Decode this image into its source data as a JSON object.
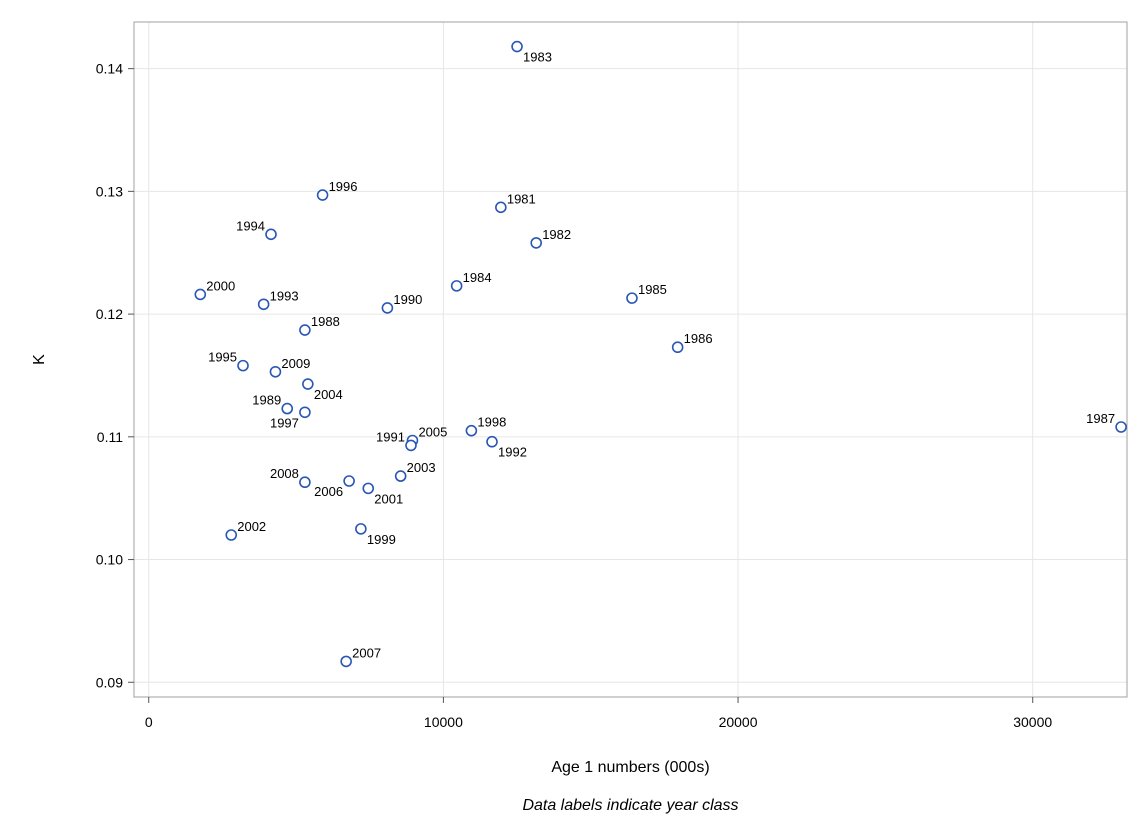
{
  "chart_data": {
    "type": "scatter",
    "title": "",
    "xlabel": "Age 1 numbers (000s)",
    "ylabel": "K",
    "footnote": "Data labels indicate year class",
    "xlim": [
      -500,
      33200
    ],
    "ylim": [
      0.0888,
      0.1438
    ],
    "xticks": [
      0,
      10000,
      20000,
      30000
    ],
    "yticks": [
      0.09,
      0.1,
      0.11,
      0.12,
      0.13,
      0.14
    ],
    "ytick_labels": [
      "0.09",
      "0.10",
      "0.11",
      "0.12",
      "0.13",
      "0.14"
    ],
    "grid": true,
    "marker_color": "#2a57b5",
    "points": [
      {
        "label": "1983",
        "x": 12500,
        "y": 0.1418,
        "pos": "below-right"
      },
      {
        "label": "1996",
        "x": 5900,
        "y": 0.1297,
        "pos": "above-right"
      },
      {
        "label": "1981",
        "x": 11950,
        "y": 0.1287,
        "pos": "above-right"
      },
      {
        "label": "1994",
        "x": 4150,
        "y": 0.1265,
        "pos": "above-left"
      },
      {
        "label": "1982",
        "x": 13150,
        "y": 0.1258,
        "pos": "above-right"
      },
      {
        "label": "1984",
        "x": 10450,
        "y": 0.1223,
        "pos": "above-right"
      },
      {
        "label": "2000",
        "x": 1750,
        "y": 0.1216,
        "pos": "above-right"
      },
      {
        "label": "1985",
        "x": 16400,
        "y": 0.1213,
        "pos": "above-right"
      },
      {
        "label": "1993",
        "x": 3900,
        "y": 0.1208,
        "pos": "above-right"
      },
      {
        "label": "1990",
        "x": 8100,
        "y": 0.1205,
        "pos": "above-right"
      },
      {
        "label": "1988",
        "x": 5300,
        "y": 0.1187,
        "pos": "above-right"
      },
      {
        "label": "1986",
        "x": 17950,
        "y": 0.1173,
        "pos": "above-right"
      },
      {
        "label": "1995",
        "x": 3200,
        "y": 0.1158,
        "pos": "above-left"
      },
      {
        "label": "2009",
        "x": 4300,
        "y": 0.1153,
        "pos": "above-right"
      },
      {
        "label": "2004",
        "x": 5400,
        "y": 0.1143,
        "pos": "below-right"
      },
      {
        "label": "1989",
        "x": 4700,
        "y": 0.1123,
        "pos": "above-left"
      },
      {
        "label": "1997",
        "x": 5300,
        "y": 0.112,
        "pos": "below-left"
      },
      {
        "label": "1987",
        "x": 33000,
        "y": 0.1108,
        "pos": "above-left"
      },
      {
        "label": "1998",
        "x": 10950,
        "y": 0.1105,
        "pos": "above-right"
      },
      {
        "label": "2005",
        "x": 8950,
        "y": 0.1097,
        "pos": "above-right"
      },
      {
        "label": "1991",
        "x": 8900,
        "y": 0.1093,
        "pos": "above-left"
      },
      {
        "label": "1992",
        "x": 11650,
        "y": 0.1096,
        "pos": "below-right"
      },
      {
        "label": "2003",
        "x": 8550,
        "y": 0.1068,
        "pos": "above-right"
      },
      {
        "label": "2008",
        "x": 5300,
        "y": 0.1063,
        "pos": "above-left"
      },
      {
        "label": "2006",
        "x": 6800,
        "y": 0.1064,
        "pos": "below-left"
      },
      {
        "label": "2001",
        "x": 7450,
        "y": 0.1058,
        "pos": "below-right"
      },
      {
        "label": "2002",
        "x": 2800,
        "y": 0.102,
        "pos": "above-right"
      },
      {
        "label": "1999",
        "x": 7200,
        "y": 0.1025,
        "pos": "below-right"
      },
      {
        "label": "2007",
        "x": 6700,
        "y": 0.0917,
        "pos": "above-right"
      }
    ]
  }
}
